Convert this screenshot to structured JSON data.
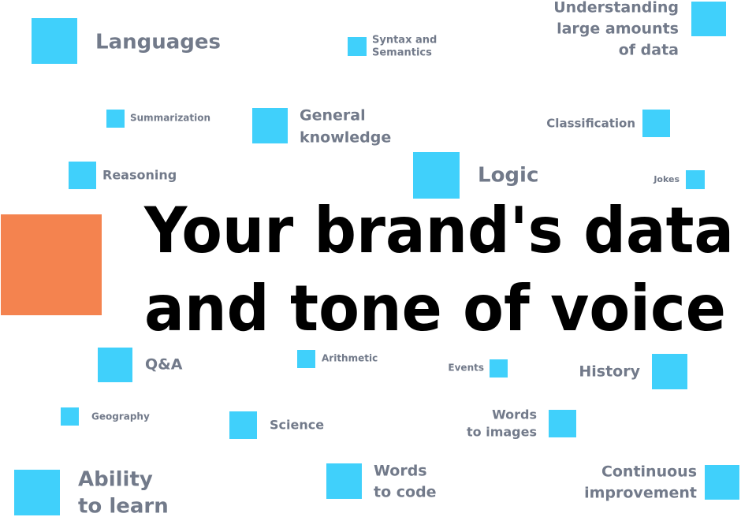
{
  "headline": {
    "lines": [
      "Your brand's data",
      "and tone of voice"
    ]
  },
  "labels": [
    {
      "lines": [
        "Languages"
      ]
    },
    {
      "lines": [
        "Syntax and",
        "Semantics"
      ]
    },
    {
      "lines": [
        "Understanding",
        "large amounts",
        "of data"
      ]
    },
    {
      "lines": [
        "Summarization"
      ]
    },
    {
      "lines": [
        "General",
        "knowledge"
      ]
    },
    {
      "lines": [
        "Classification"
      ]
    },
    {
      "lines": [
        "Reasoning"
      ]
    },
    {
      "lines": [
        "Logic"
      ]
    },
    {
      "lines": [
        "Jokes"
      ]
    },
    {
      "lines": [
        "Q&A"
      ]
    },
    {
      "lines": [
        "Arithmetic"
      ]
    },
    {
      "lines": [
        "Events"
      ]
    },
    {
      "lines": [
        "History"
      ]
    },
    {
      "lines": [
        "Geography"
      ]
    },
    {
      "lines": [
        "Science"
      ]
    },
    {
      "lines": [
        "Words",
        "to images"
      ]
    },
    {
      "lines": [
        "Ability",
        "to learn"
      ]
    },
    {
      "lines": [
        "Words",
        "to code"
      ]
    },
    {
      "lines": [
        "Continuous",
        "improvement"
      ]
    }
  ]
}
